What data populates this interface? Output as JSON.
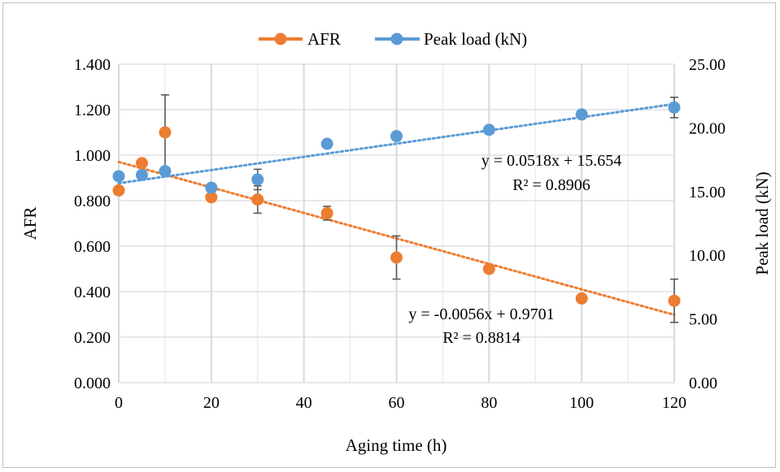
{
  "chart_data": {
    "type": "scatter",
    "xlabel": "Aging time (h)",
    "ylabel_left": "AFR",
    "ylabel_right": "Peak load (kN)",
    "xlim": [
      0,
      120
    ],
    "ylim_left": [
      0,
      1.4
    ],
    "ylim_right": [
      0,
      25
    ],
    "x_ticks": [
      "0",
      "20",
      "40",
      "60",
      "80",
      "100",
      "120"
    ],
    "y_left_ticks": [
      "0.000",
      "0.200",
      "0.400",
      "0.600",
      "0.800",
      "1.000",
      "1.200",
      "1.400"
    ],
    "y_right_ticks": [
      "0.00",
      "5.00",
      "10.00",
      "15.00",
      "20.00",
      "25.00"
    ],
    "grid": true,
    "legend_position": "top",
    "series": [
      {
        "name": "AFR",
        "axis": "left",
        "color": "#ED7D31",
        "x": [
          0,
          5,
          10,
          20,
          30,
          45,
          60,
          80,
          100,
          120
        ],
        "y": [
          0.845,
          0.965,
          1.1,
          0.815,
          0.805,
          0.745,
          0.55,
          0.5,
          0.37,
          0.36
        ],
        "error": [
          null,
          null,
          0.165,
          null,
          0.06,
          0.03,
          0.095,
          null,
          null,
          0.095
        ],
        "trendline": {
          "slope": -0.0056,
          "intercept": 0.9701,
          "equation": "y = -0.0056x + 0.9701",
          "r2": "R² = 0.8814"
        }
      },
      {
        "name": "Peak load (kN)",
        "axis": "right",
        "color": "#5B9BD5",
        "x": [
          0,
          5,
          10,
          20,
          30,
          45,
          60,
          80,
          100,
          120
        ],
        "y": [
          16.2,
          16.3,
          16.6,
          15.3,
          15.95,
          18.75,
          19.35,
          19.85,
          21.05,
          21.6
        ],
        "error": [
          null,
          null,
          null,
          null,
          0.8,
          null,
          null,
          null,
          null,
          0.8
        ],
        "trendline": {
          "slope": 0.0518,
          "intercept": 15.654,
          "equation": "y = 0.0518x + 15.654",
          "r2": "R² = 0.8906"
        }
      }
    ]
  }
}
